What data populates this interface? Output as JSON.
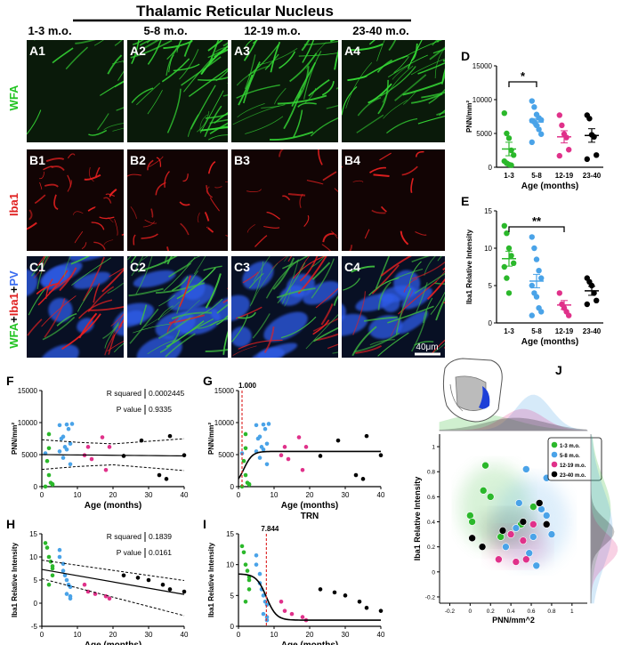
{
  "header": {
    "title": "Thalamic Reticular Nucleus",
    "ages": [
      "1-3 m.o.",
      "5-8 m.o.",
      "12-19 m.o.",
      "23-40 m.o."
    ]
  },
  "rows": [
    {
      "label": "WFA",
      "color": "#22c422",
      "panels": [
        "A1",
        "A2",
        "A3",
        "A4"
      ],
      "base": "#0a1a0a",
      "fiber": "#35d935"
    },
    {
      "label": "Iba1",
      "color": "#e02020",
      "panels": [
        "B1",
        "B2",
        "B3",
        "B4"
      ],
      "base": "#120404",
      "fiber": "#e52020"
    },
    {
      "label_parts": [
        {
          "t": "WFA",
          "c": "#22c422"
        },
        {
          "t": "+",
          "c": "#ffffff"
        },
        {
          "t": "Iba1",
          "c": "#e02020"
        },
        {
          "t": "+",
          "c": "#ffffff"
        },
        {
          "t": "PV",
          "c": "#3a6cf0"
        }
      ],
      "panels": [
        "C1",
        "C2",
        "C3",
        "C4"
      ],
      "base": "#081024",
      "fiber": "#40c040"
    }
  ],
  "scalebar": "40μm",
  "colors": {
    "g1": "#2bb82b",
    "g2": "#4aa3e8",
    "g3": "#e0318a",
    "g4": "#000000"
  },
  "chart_data": [
    {
      "panel": "D",
      "type": "scatter",
      "ylabel": "PNN/mm²",
      "xlabel": "Age (months)",
      "categories": [
        "1-3",
        "5-8",
        "12-19",
        "23-40"
      ],
      "ylim": [
        0,
        15000
      ],
      "yticks": [
        0,
        5000,
        10000,
        15000
      ],
      "sig": "*",
      "sig_between": [
        0,
        1
      ],
      "series": [
        [
          8000,
          5000,
          4300,
          2500,
          1800,
          900,
          600,
          400,
          300
        ],
        [
          9800,
          8900,
          7800,
          7300,
          7000,
          6900,
          6700,
          6200,
          5600,
          4900,
          3700
        ],
        [
          7700,
          6200,
          4900,
          4400,
          2600,
          1700
        ],
        [
          7700,
          7200,
          4800,
          4500,
          1800,
          1200
        ]
      ],
      "means": [
        2700,
        6700,
        4500,
        4700
      ],
      "sems": [
        1000,
        500,
        900,
        1000
      ]
    },
    {
      "panel": "E",
      "type": "scatter",
      "ylabel": "Iba1 Relative Intensity",
      "xlabel": "Age (months)",
      "categories": [
        "1-3",
        "5-8",
        "12-19",
        "23-40"
      ],
      "ylim": [
        0,
        15
      ],
      "yticks": [
        0,
        5,
        10,
        15
      ],
      "sig": "**",
      "sig_between": [
        0,
        2
      ],
      "series": [
        [
          13,
          12,
          10,
          9,
          8,
          7.5,
          6,
          4
        ],
        [
          11.5,
          10,
          8.5,
          7,
          6,
          5,
          4,
          3.5,
          2,
          1.5,
          1
        ],
        [
          4,
          2.5,
          2,
          1.5,
          1
        ],
        [
          6,
          5.5,
          5,
          4,
          3,
          2.5
        ]
      ],
      "means": [
        8.6,
        5.6,
        2.4,
        4.3
      ],
      "sems": [
        1.0,
        0.9,
        0.6,
        0.6
      ]
    },
    {
      "panel": "F",
      "type": "scatter",
      "ylabel": "PNN/mm²",
      "xlabel": "Age (months)",
      "xlim": [
        0,
        40
      ],
      "ylim": [
        0,
        15000
      ],
      "yticks": [
        0,
        5000,
        10000,
        15000
      ],
      "xticks": [
        0,
        10,
        20,
        30,
        40
      ],
      "stats": [
        [
          "R squared",
          "0.0002445"
        ],
        [
          "P value",
          "0.9335"
        ]
      ]
    },
    {
      "panel": "G",
      "type": "scatter",
      "ylabel": "PNN/mm²",
      "xlabel": "Age (months)",
      "xlim": [
        0,
        40
      ],
      "ylim": [
        0,
        15000
      ],
      "yticks": [
        0,
        5000,
        10000,
        15000
      ],
      "xticks": [
        0,
        10,
        20,
        30,
        40
      ],
      "annotation": "1.000",
      "annotation_x": 1.0,
      "caption": "TRN"
    },
    {
      "panel": "H",
      "type": "scatter",
      "ylabel": "Iba1 Relative Intensity",
      "xlabel": "Age (months)",
      "xlim": [
        0,
        40
      ],
      "ylim": [
        -5,
        15
      ],
      "yticks": [
        -5,
        0,
        5,
        10,
        15
      ],
      "xticks": [
        0,
        10,
        20,
        30,
        40
      ],
      "stats": [
        [
          "R squared",
          "0.1839"
        ],
        [
          "P value",
          "0.0161"
        ]
      ]
    },
    {
      "panel": "I",
      "type": "scatter",
      "ylabel": "Iba1 Relative Intensity",
      "xlabel": "Age (months)",
      "xlim": [
        0,
        40
      ],
      "ylim": [
        0,
        15
      ],
      "yticks": [
        0,
        5,
        10,
        15
      ],
      "xticks": [
        0,
        10,
        20,
        30,
        40
      ],
      "annotation": "7.844",
      "annotation_x": 7.844
    },
    {
      "panel": "J",
      "type": "scatter",
      "ylabel": "Iba1 Relative Intensity",
      "xlabel": "PNN/mm^2",
      "xlim": [
        -0.3,
        1.15
      ],
      "ylim": [
        -0.25,
        1.1
      ],
      "xticks": [
        -0.2,
        0,
        0.2,
        0.4,
        0.6,
        0.8,
        1.0
      ],
      "yticks": [
        -0.2,
        0,
        0.2,
        0.4,
        0.6,
        0.8,
        1.0
      ],
      "legend": [
        "1-3 m.o.",
        "5-8 m.o.",
        "12-19 m.o.",
        "23-40 m.o."
      ],
      "series": [
        [
          [
            0.15,
            0.85
          ],
          [
            0.13,
            0.65
          ],
          [
            0.2,
            0.6
          ],
          [
            0.0,
            0.45
          ],
          [
            0.02,
            0.4
          ],
          [
            0.5,
            0.38
          ],
          [
            0.62,
            0.52
          ],
          [
            0.3,
            0.28
          ]
        ],
        [
          [
            0.75,
            0.75
          ],
          [
            0.55,
            0.82
          ],
          [
            0.45,
            0.35
          ],
          [
            0.8,
            0.3
          ],
          [
            0.75,
            0.45
          ],
          [
            0.62,
            0.28
          ],
          [
            0.48,
            0.55
          ],
          [
            0.7,
            0.5
          ],
          [
            0.35,
            0.2
          ],
          [
            0.65,
            0.05
          ],
          [
            0.58,
            0.15
          ]
        ],
        [
          [
            0.4,
            0.3
          ],
          [
            0.52,
            0.25
          ],
          [
            0.62,
            0.38
          ],
          [
            0.28,
            0.1
          ],
          [
            0.45,
            0.08
          ],
          [
            0.55,
            0.1
          ]
        ],
        [
          [
            0.75,
            0.38
          ],
          [
            0.52,
            0.4
          ],
          [
            0.12,
            0.2
          ],
          [
            0.68,
            0.55
          ],
          [
            0.02,
            0.27
          ],
          [
            0.32,
            0.33
          ]
        ]
      ]
    }
  ],
  "scatter_points": [
    [
      [
        1,
        13,
        0
      ],
      [
        1,
        5200,
        1
      ],
      [
        1.5,
        4000,
        0
      ],
      [
        2,
        6000,
        0
      ],
      [
        2,
        8200,
        0
      ],
      [
        2,
        1800,
        0
      ],
      [
        2.5,
        600,
        0
      ],
      [
        3,
        300,
        0
      ],
      [
        3,
        400,
        0
      ],
      [
        5,
        5500,
        1
      ],
      [
        5.5,
        7500,
        1
      ],
      [
        6,
        7800,
        1
      ],
      [
        6,
        4500,
        1
      ],
      [
        6.5,
        6200,
        1
      ],
      [
        7,
        9700,
        1
      ],
      [
        7,
        5800,
        1
      ],
      [
        7.5,
        9000,
        1
      ],
      [
        8,
        3500,
        1
      ],
      [
        8,
        6700,
        1
      ],
      [
        8.5,
        9800,
        1
      ],
      [
        5,
        9600,
        1
      ],
      [
        12,
        4900,
        2
      ],
      [
        13,
        6200,
        2
      ],
      [
        14,
        4300,
        2
      ],
      [
        17,
        7700,
        2
      ],
      [
        18,
        2600,
        2
      ],
      [
        19,
        6200,
        2
      ],
      [
        23,
        4800,
        3
      ],
      [
        28,
        7200,
        3
      ],
      [
        33,
        1800,
        3
      ],
      [
        35,
        1200,
        3
      ],
      [
        36,
        7900,
        3
      ],
      [
        40,
        4900,
        3
      ]
    ],
    [
      [
        1,
        13,
        0
      ],
      [
        1.5,
        12,
        0
      ],
      [
        2,
        10,
        0
      ],
      [
        2.5,
        9,
        0
      ],
      [
        3,
        7.5,
        0
      ],
      [
        3,
        6,
        0
      ],
      [
        2,
        4,
        0
      ],
      [
        3,
        8,
        0
      ],
      [
        5,
        11.5,
        1
      ],
      [
        5,
        10,
        1
      ],
      [
        6,
        8.5,
        1
      ],
      [
        6,
        7,
        1
      ],
      [
        6.5,
        6,
        1
      ],
      [
        7,
        5,
        1
      ],
      [
        7.5,
        4,
        1
      ],
      [
        8,
        3.5,
        1
      ],
      [
        7,
        2,
        1
      ],
      [
        8,
        1.5,
        1
      ],
      [
        8,
        1,
        1
      ],
      [
        12,
        4,
        2
      ],
      [
        13,
        2.5,
        2
      ],
      [
        15,
        2,
        2
      ],
      [
        18,
        1.5,
        2
      ],
      [
        19,
        1,
        2
      ],
      [
        23,
        6,
        3
      ],
      [
        27,
        5.5,
        3
      ],
      [
        30,
        5,
        3
      ],
      [
        34,
        4,
        3
      ],
      [
        36,
        3,
        3
      ],
      [
        40,
        2.5,
        3
      ]
    ]
  ]
}
